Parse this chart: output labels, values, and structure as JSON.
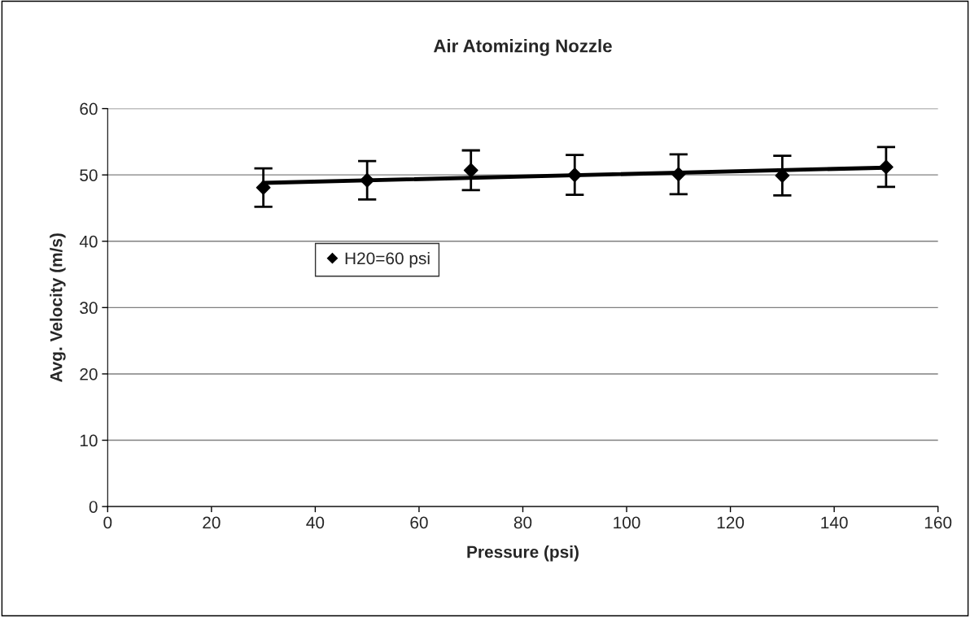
{
  "chart_data": {
    "type": "scatter",
    "title": "Air Atomizing Nozzle",
    "xlabel": "Pressure (psi)",
    "ylabel": "Avg. Velocity (m/s)",
    "series": [
      {
        "name": "H20=60 psi",
        "color": "#000000",
        "marker": "diamond",
        "x": [
          30,
          50,
          70,
          90,
          110,
          130,
          150
        ],
        "values": [
          48.1,
          49.2,
          50.7,
          50.0,
          50.1,
          49.9,
          51.2
        ],
        "errors": [
          2.9,
          2.9,
          3.0,
          3.0,
          3.0,
          3.0,
          3.0
        ]
      },
      {
        "type": "line",
        "color": "#000000",
        "marker": "none",
        "x": [
          30,
          150
        ],
        "values": [
          48.8,
          51.1
        ]
      }
    ],
    "xlim": [
      0,
      160
    ],
    "xticks": [
      0,
      20,
      40,
      60,
      80,
      100,
      120,
      140,
      160
    ],
    "ylim": [
      0,
      60
    ],
    "yticks": [
      0,
      10,
      20,
      30,
      40,
      50,
      60
    ],
    "grid": "y",
    "legend": "left"
  }
}
